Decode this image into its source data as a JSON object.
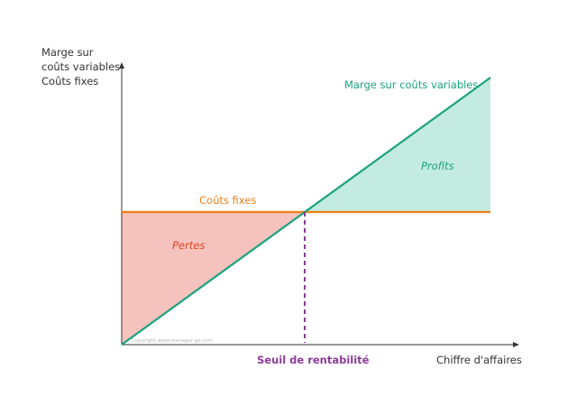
{
  "y_axis_label": [
    "Marge sur",
    "coûts variables",
    "Coûts fixes"
  ],
  "x_axis_label": "Chiffre d'affaires",
  "line_labels": {
    "margin": "Marge sur coûts variables",
    "fixed_costs": "Coûts fixes"
  },
  "regions": {
    "losses": "Pertes",
    "profits": "Profits"
  },
  "breakeven_label": "Seuil de rentabilité",
  "copyright": "Copyright www.manager-go.com",
  "colors": {
    "margin_line": "#1aa37d",
    "fixed_line": "#f07f17",
    "losses_fill": "#f6c2bd",
    "profits_fill": "#c4ebdf",
    "breakeven": "#8c3b98",
    "axis": "#333333"
  }
}
